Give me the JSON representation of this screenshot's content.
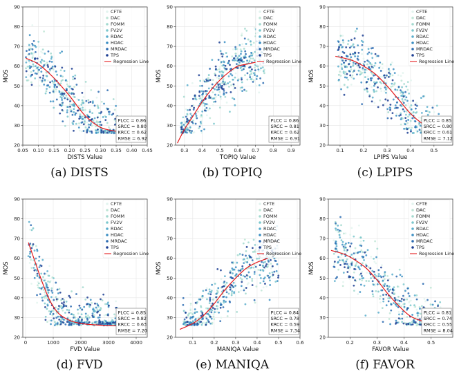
{
  "legend_labels": [
    "CFTE",
    "DAC",
    "FOMM",
    "FV2V",
    "RDAC",
    "HDAC",
    "MRDAC",
    "TPS",
    "Regression Line"
  ],
  "series_colors": [
    "#e3f4ef",
    "#bfe6d6",
    "#a3d9cf",
    "#7cc8cd",
    "#5aaecd",
    "#3c8fc3",
    "#2c6bb1",
    "#1d3f93"
  ],
  "regression_color": "#e41a1c",
  "ylabel": "MOS",
  "chart_data": [
    {
      "type": "scatter",
      "caption": "(a) DISTS",
      "xlabel": "DISTS Value",
      "ylabel": "MOS",
      "xlim": [
        0.05,
        0.45
      ],
      "ylim": [
        20,
        90
      ],
      "xticks": [
        "0.05",
        "0.10",
        "0.15",
        "0.20",
        "0.25",
        "0.30",
        "0.35",
        "0.40",
        "0.45"
      ],
      "xtick_values": [
        0.05,
        0.1,
        0.15,
        0.2,
        0.25,
        0.3,
        0.35,
        0.4,
        0.45
      ],
      "yticks": [
        20,
        30,
        40,
        50,
        60,
        70,
        80,
        90
      ],
      "grid": true,
      "legend": "top-right",
      "stats": [
        "PLCC = 0.86",
        "SRCC = 0.80",
        "KRCC = 0.62",
        "RMSE = 6.92"
      ],
      "regression": {
        "x": [
          0.06,
          0.1,
          0.15,
          0.2,
          0.25,
          0.3,
          0.35
        ],
        "y": [
          64,
          61,
          54,
          45,
          35,
          29,
          27
        ]
      },
      "points": {
        "x_range": [
          0.06,
          0.36
        ],
        "floor": 26,
        "spread": 7,
        "seed": 11
      }
    },
    {
      "type": "scatter",
      "caption": "(b) TOPIQ",
      "xlabel": "TOPIQ Value",
      "ylabel": "MOS",
      "xlim": [
        0.25,
        0.95
      ],
      "ylim": [
        20,
        90
      ],
      "xticks": [
        "0.3",
        "0.4",
        "0.5",
        "0.6",
        "0.7",
        "0.8",
        "0.9"
      ],
      "xtick_values": [
        0.3,
        0.4,
        0.5,
        0.6,
        0.7,
        0.8,
        0.9
      ],
      "yticks": [
        20,
        30,
        40,
        50,
        60,
        70,
        80,
        90
      ],
      "grid": true,
      "legend": "top-right",
      "stats": [
        "PLCC = 0.86",
        "SRCC = 0.81",
        "KRCC = 0.62",
        "RMSE = 6.91"
      ],
      "regression": {
        "x": [
          0.26,
          0.3,
          0.35,
          0.4,
          0.45,
          0.5,
          0.55,
          0.6,
          0.65,
          0.7
        ],
        "y": [
          21,
          28,
          35,
          42,
          48,
          53,
          57,
          60,
          61,
          62
        ]
      },
      "points": {
        "x_range": [
          0.28,
          0.75
        ],
        "floor": 26,
        "spread": 7,
        "seed": 23
      }
    },
    {
      "type": "scatter",
      "caption": "(c) LPIPS",
      "xlabel": "LPIPS Value",
      "ylabel": "MOS",
      "xlim": [
        0.05,
        0.58
      ],
      "ylim": [
        20,
        90
      ],
      "xticks": [
        "0.1",
        "0.2",
        "0.3",
        "0.4",
        "0.5"
      ],
      "xtick_values": [
        0.1,
        0.2,
        0.3,
        0.4,
        0.5
      ],
      "yticks": [
        20,
        30,
        40,
        50,
        60,
        70,
        80,
        90
      ],
      "grid": true,
      "legend": "top-right",
      "stats": [
        "PLCC = 0.85",
        "SRCC = 0.80",
        "KRCC = 0.61",
        "RMSE = 7.12"
      ],
      "regression": {
        "x": [
          0.08,
          0.15,
          0.2,
          0.25,
          0.3,
          0.35,
          0.4,
          0.45,
          0.5,
          0.53
        ],
        "y": [
          65,
          63,
          60,
          56,
          50,
          43,
          36,
          31,
          28,
          27
        ]
      },
      "points": {
        "x_range": [
          0.09,
          0.53
        ],
        "floor": 26,
        "spread": 7,
        "seed": 37
      }
    },
    {
      "type": "scatter",
      "caption": "(d) FVD",
      "xlabel": "FVD Value",
      "ylabel": "MOS",
      "xlim": [
        -100,
        4400
      ],
      "ylim": [
        20,
        90
      ],
      "xticks": [
        "0",
        "1000",
        "2000",
        "3000",
        "4000"
      ],
      "xtick_values": [
        0,
        1000,
        2000,
        3000,
        4000
      ],
      "yticks": [
        20,
        30,
        40,
        50,
        60,
        70,
        80,
        90
      ],
      "grid": true,
      "legend": "top-right",
      "stats": [
        "PLCC = 0.85",
        "SRCC = 0.82",
        "KRCC = 0.63",
        "RMSE = 7.20"
      ],
      "regression": {
        "x": [
          100,
          300,
          600,
          900,
          1200,
          1600,
          2000,
          2500,
          3000,
          3300
        ],
        "y": [
          68,
          60,
          48,
          38,
          32,
          28.5,
          27,
          26.3,
          26,
          25.8
        ]
      },
      "points": {
        "x_range": [
          100,
          3300
        ],
        "floor": 26,
        "spread": 7,
        "seed": 41
      }
    },
    {
      "type": "scatter",
      "caption": "(e) MANIQA",
      "xlabel": "MANIQA Value",
      "ylabel": "MOS",
      "xlim": [
        0.02,
        0.6
      ],
      "ylim": [
        20,
        90
      ],
      "xticks": [
        "0.1",
        "0.2",
        "0.3",
        "0.4",
        "0.5",
        "0.6"
      ],
      "xtick_values": [
        0.1,
        0.2,
        0.3,
        0.4,
        0.5,
        0.6
      ],
      "yticks": [
        20,
        30,
        40,
        50,
        60,
        70,
        80,
        90
      ],
      "grid": true,
      "legend": "top-right",
      "stats": [
        "PLCC = 0.84",
        "SRCC = 0.78",
        "KRCC = 0.59",
        "RMSE = 7.34"
      ],
      "regression": {
        "x": [
          0.04,
          0.1,
          0.15,
          0.2,
          0.25,
          0.3,
          0.35,
          0.4,
          0.45
        ],
        "y": [
          24,
          27,
          31,
          37,
          44,
          50,
          55,
          58,
          60
        ]
      },
      "points": {
        "x_range": [
          0.05,
          0.5
        ],
        "floor": 26,
        "spread": 7,
        "seed": 53
      }
    },
    {
      "type": "scatter",
      "caption": "(f) FAVOR",
      "xlabel": "FAVOR Value",
      "ylabel": "MOS",
      "xlim": [
        0.12,
        0.58
      ],
      "ylim": [
        20,
        90
      ],
      "xticks": [
        "0.2",
        "0.3",
        "0.4",
        "0.5"
      ],
      "xtick_values": [
        0.2,
        0.3,
        0.4,
        0.5
      ],
      "yticks": [
        20,
        30,
        40,
        50,
        60,
        70,
        80,
        90
      ],
      "grid": true,
      "legend": "top-right",
      "stats": [
        "PLCC = 0.81",
        "SRCC = 0.74",
        "KRCC = 0.55",
        "RMSE = 8.04"
      ],
      "regression": {
        "x": [
          0.13,
          0.18,
          0.22,
          0.26,
          0.3,
          0.34,
          0.38,
          0.42,
          0.46,
          0.5,
          0.54
        ],
        "y": [
          64,
          62,
          59,
          55,
          49,
          42,
          36,
          31,
          28.5,
          27,
          26.5
        ]
      },
      "points": {
        "x_range": [
          0.14,
          0.54
        ],
        "floor": 26,
        "spread": 7,
        "seed": 67
      }
    }
  ]
}
